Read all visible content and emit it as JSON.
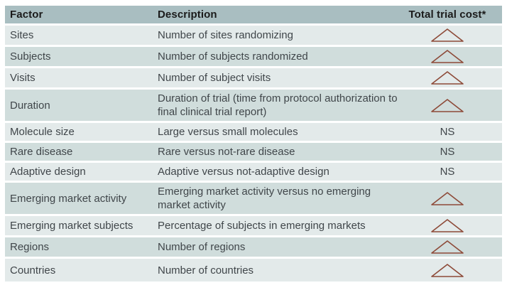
{
  "table": {
    "columns": [
      {
        "label": "Factor"
      },
      {
        "label": "Description"
      },
      {
        "label": "Total trial cost*"
      }
    ],
    "rows": [
      {
        "factor": "Sites",
        "description": "Number of sites randomizing",
        "cost": "increase"
      },
      {
        "factor": "Subjects",
        "description": "Number of subjects randomized",
        "cost": "increase"
      },
      {
        "factor": "Visits",
        "description": "Number of subject visits",
        "cost": "increase"
      },
      {
        "factor": "Duration",
        "description": "Duration of trial (time from protocol authorization to final clinical trial report)",
        "cost": "increase"
      },
      {
        "factor": "Molecule size",
        "description": "Large versus small molecules",
        "cost": "NS"
      },
      {
        "factor": "Rare disease",
        "description": "Rare versus not-rare disease",
        "cost": "NS"
      },
      {
        "factor": "Adaptive design",
        "description": "Adaptive versus not-adaptive design",
        "cost": "NS"
      },
      {
        "factor": "Emerging market activity",
        "description": "Emerging market activity versus no emerging market activity",
        "cost": "increase"
      },
      {
        "factor": "Emerging market subjects",
        "description": "Percentage of subjects in emerging markets",
        "cost": "increase"
      },
      {
        "factor": "Regions",
        "description": "Number of regions",
        "cost": "increase"
      },
      {
        "factor": "Countries",
        "description": "Number of countries",
        "cost": "increase"
      }
    ],
    "ns_label": "NS",
    "cost_increase_icon": "triangle-up-icon",
    "colors": {
      "header_bg": "#a9bec1",
      "row_light": "#e3eaea",
      "row_dark": "#d0dddc",
      "header_text": "#1b1b1b",
      "body_text": "#40464a",
      "triangle_fill_top": "#f8c3a3",
      "triangle_fill_bottom": "#eb8767",
      "triangle_stroke": "#8d4a38"
    }
  }
}
